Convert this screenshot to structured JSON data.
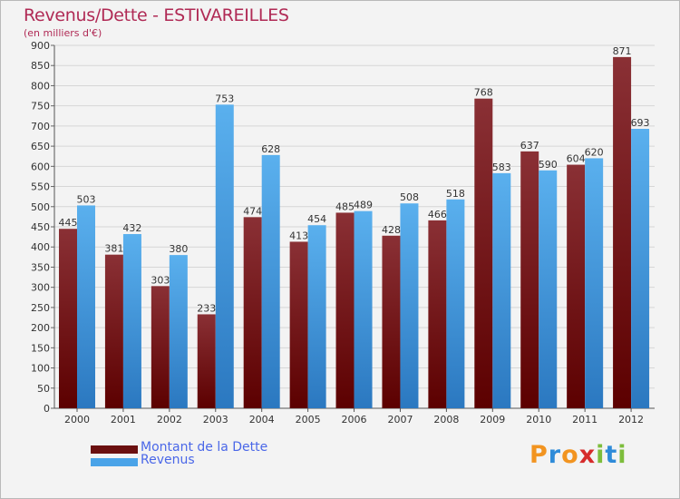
{
  "title": "Revenus/Dette - ESTIVAREILLES",
  "unit_label": "(en milliers d'€)",
  "colors": {
    "dette_top": "#8a3035",
    "dette_bottom": "#5c0000",
    "revenus_top": "#5ab0ee",
    "revenus_bottom": "#2b78c0",
    "title": "#b02a55",
    "legend_text": "#4a67e8"
  },
  "legend": [
    {
      "label": "Montant de la Dette",
      "color": "#6b0f0f"
    },
    {
      "label": "Revenus",
      "color": "#4aa3e8"
    }
  ],
  "logo": {
    "text": "Proxiti",
    "letters": [
      "P",
      "r",
      "o",
      "x",
      "i",
      "t",
      "i"
    ],
    "letter_colors": [
      "#f29420",
      "#2e8bd9",
      "#f29420",
      "#d62b2b",
      "#7dbd3b",
      "#2e8bd9",
      "#7dbd3b"
    ]
  },
  "chart_data": {
    "type": "bar",
    "categories": [
      "2000",
      "2001",
      "2002",
      "2003",
      "2004",
      "2005",
      "2006",
      "2007",
      "2008",
      "2009",
      "2010",
      "2011",
      "2012"
    ],
    "series": [
      {
        "name": "Montant de la Dette",
        "values": [
          445,
          381,
          303,
          233,
          474,
          413,
          485,
          428,
          466,
          768,
          637,
          604,
          871
        ]
      },
      {
        "name": "Revenus",
        "values": [
          503,
          432,
          380,
          753,
          628,
          454,
          489,
          508,
          518,
          583,
          590,
          620,
          693
        ]
      }
    ],
    "ylim": [
      0,
      900
    ],
    "ytick_step": 50,
    "grid": true,
    "legend_position": "bottom-left"
  }
}
